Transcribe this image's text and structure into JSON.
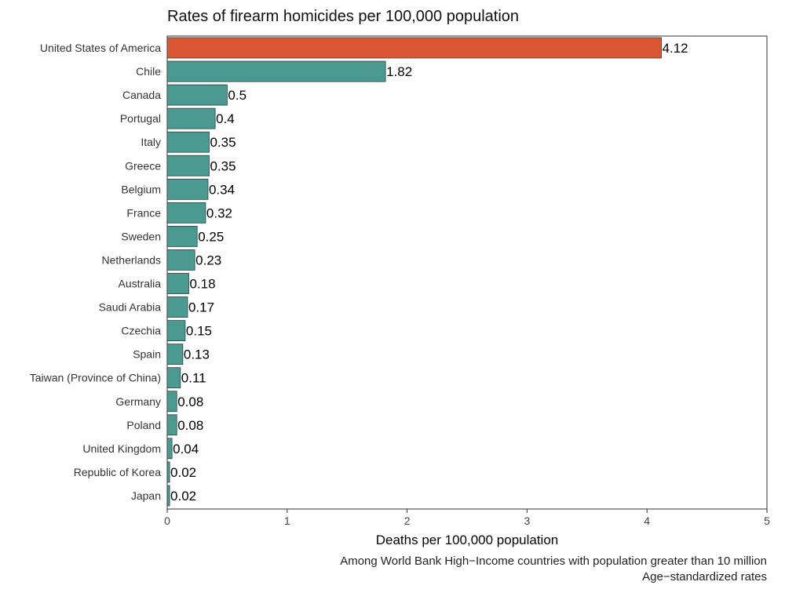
{
  "chart_data": {
    "type": "bar",
    "orientation": "horizontal",
    "title": "Rates of firearm homicides per 100,000 population",
    "xlabel": "Deaths per 100,000 population",
    "ylabel": "",
    "xlim": [
      0,
      5
    ],
    "x_ticks": [
      "0",
      "1",
      "2",
      "3",
      "4",
      "5"
    ],
    "grid": false,
    "categories": [
      "United States of America",
      "Chile",
      "Canada",
      "Portugal",
      "Italy",
      "Greece",
      "Belgium",
      "France",
      "Sweden",
      "Netherlands",
      "Australia",
      "Saudi Arabia",
      "Czechia",
      "Spain",
      "Taiwan (Province of China)",
      "Germany",
      "Poland",
      "United Kingdom",
      "Republic of Korea",
      "Japan"
    ],
    "values": [
      4.12,
      1.82,
      0.5,
      0.4,
      0.35,
      0.35,
      0.34,
      0.32,
      0.25,
      0.23,
      0.18,
      0.17,
      0.15,
      0.13,
      0.11,
      0.08,
      0.08,
      0.04,
      0.02,
      0.02
    ],
    "value_labels": [
      "4.12",
      "1.82",
      "0.5",
      "0.4",
      "0.35",
      "0.35",
      "0.34",
      "0.32",
      "0.25",
      "0.23",
      "0.18",
      "0.17",
      "0.15",
      "0.13",
      "0.11",
      "0.08",
      "0.08",
      "0.04",
      "0.02",
      "0.02"
    ],
    "highlight_category": "United States of America",
    "colors": {
      "highlight": "#db5733",
      "default": "#4b9a91",
      "bar_border": "#2f3f3c"
    },
    "notes": [
      "Among World Bank High−Income countries with population greater than 10 million",
      "Age−standardized rates"
    ]
  }
}
